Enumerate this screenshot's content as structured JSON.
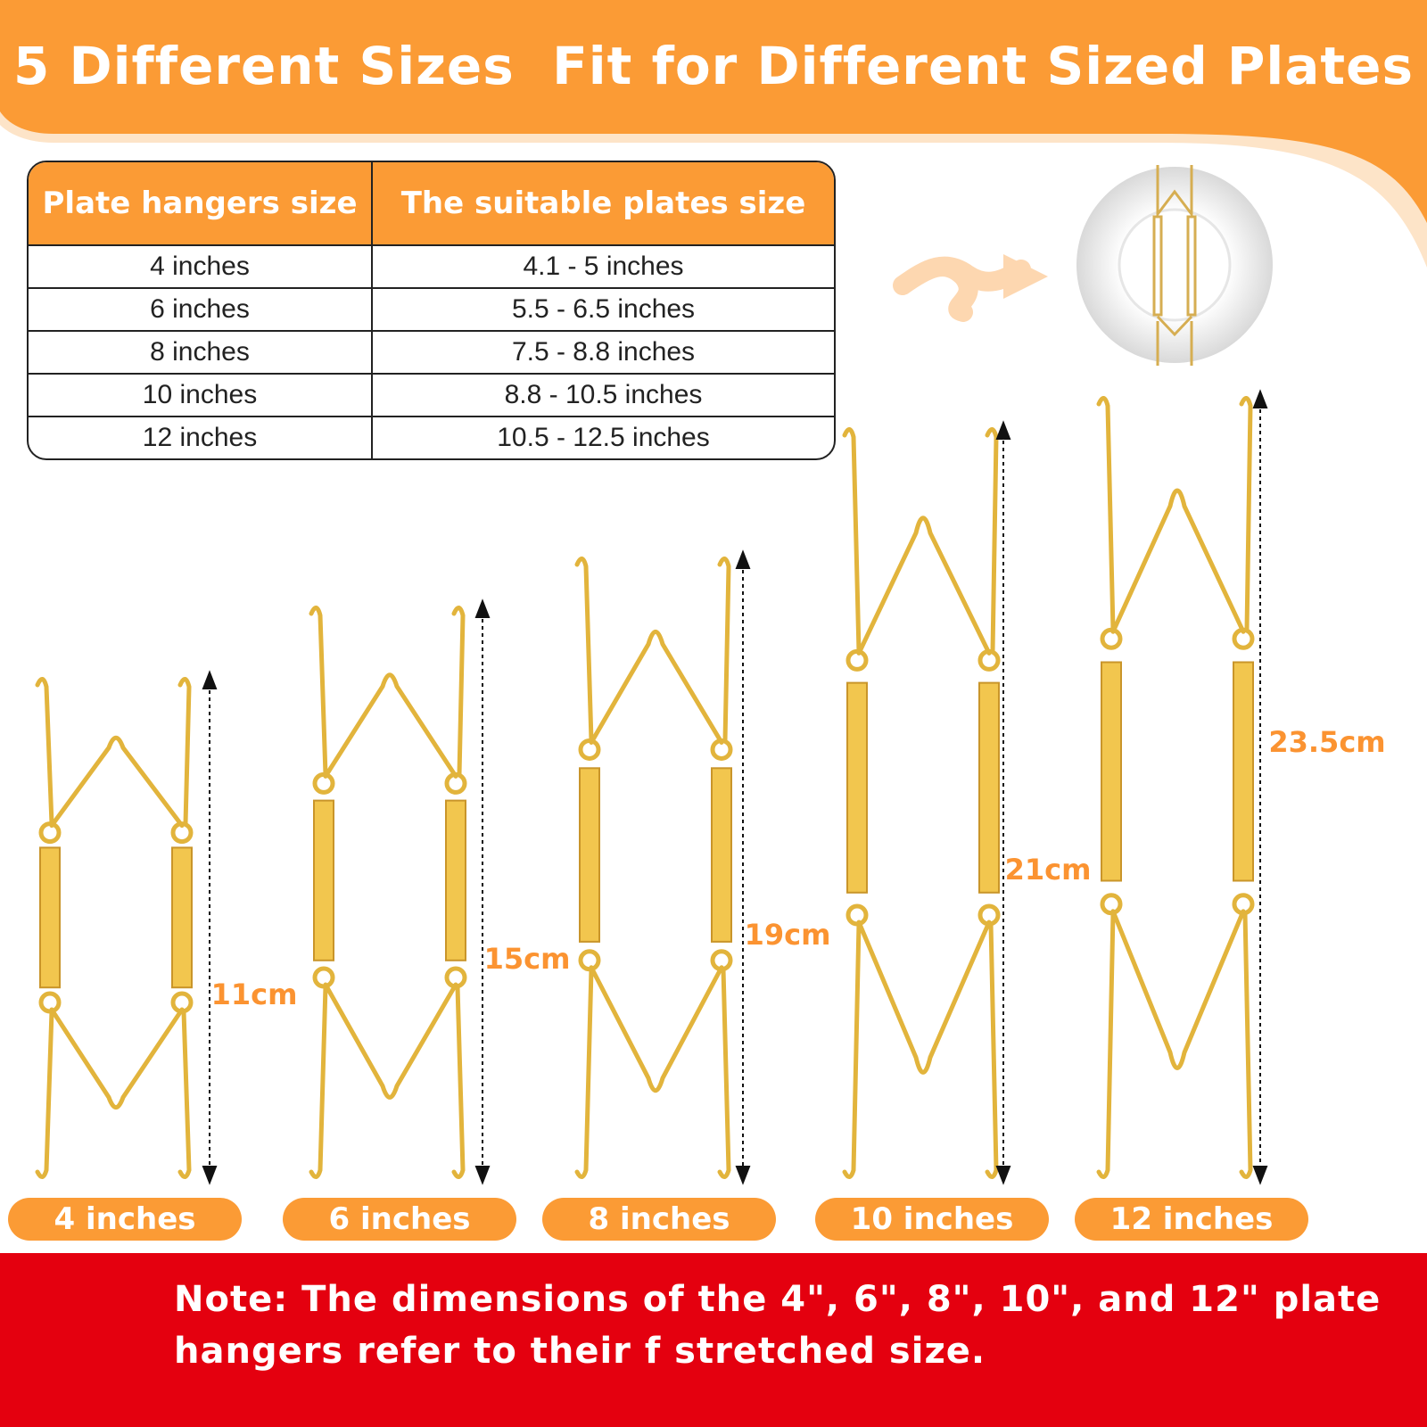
{
  "header": {
    "title": "5 Different Sizes  Fit for Different Sized Plates"
  },
  "table": {
    "headers": [
      "Plate hangers size",
      "The suitable plates size"
    ],
    "rows": [
      [
        "4 inches",
        "4.1 - 5 inches"
      ],
      [
        "6 inches",
        "5.5 - 6.5 inches"
      ],
      [
        "8 inches",
        "7.5 - 8.8 inches"
      ],
      [
        "10 inches",
        "8.8 - 10.5 inches"
      ],
      [
        "12 inches",
        "10.5 - 12.5 inches"
      ]
    ]
  },
  "hangers": [
    {
      "length": "11cm",
      "label": "4 inches"
    },
    {
      "length": "15cm",
      "label": "6 inches"
    },
    {
      "length": "19cm",
      "label": "8 inches"
    },
    {
      "length": "21cm",
      "label": "10 inches"
    },
    {
      "length": "23.5cm",
      "label": "12 inches"
    }
  ],
  "note": {
    "text": "Note: The dimensions of the 4\", 6\", 8\", 10\", and 12\" plate hangers refer to their f stretched size."
  }
}
